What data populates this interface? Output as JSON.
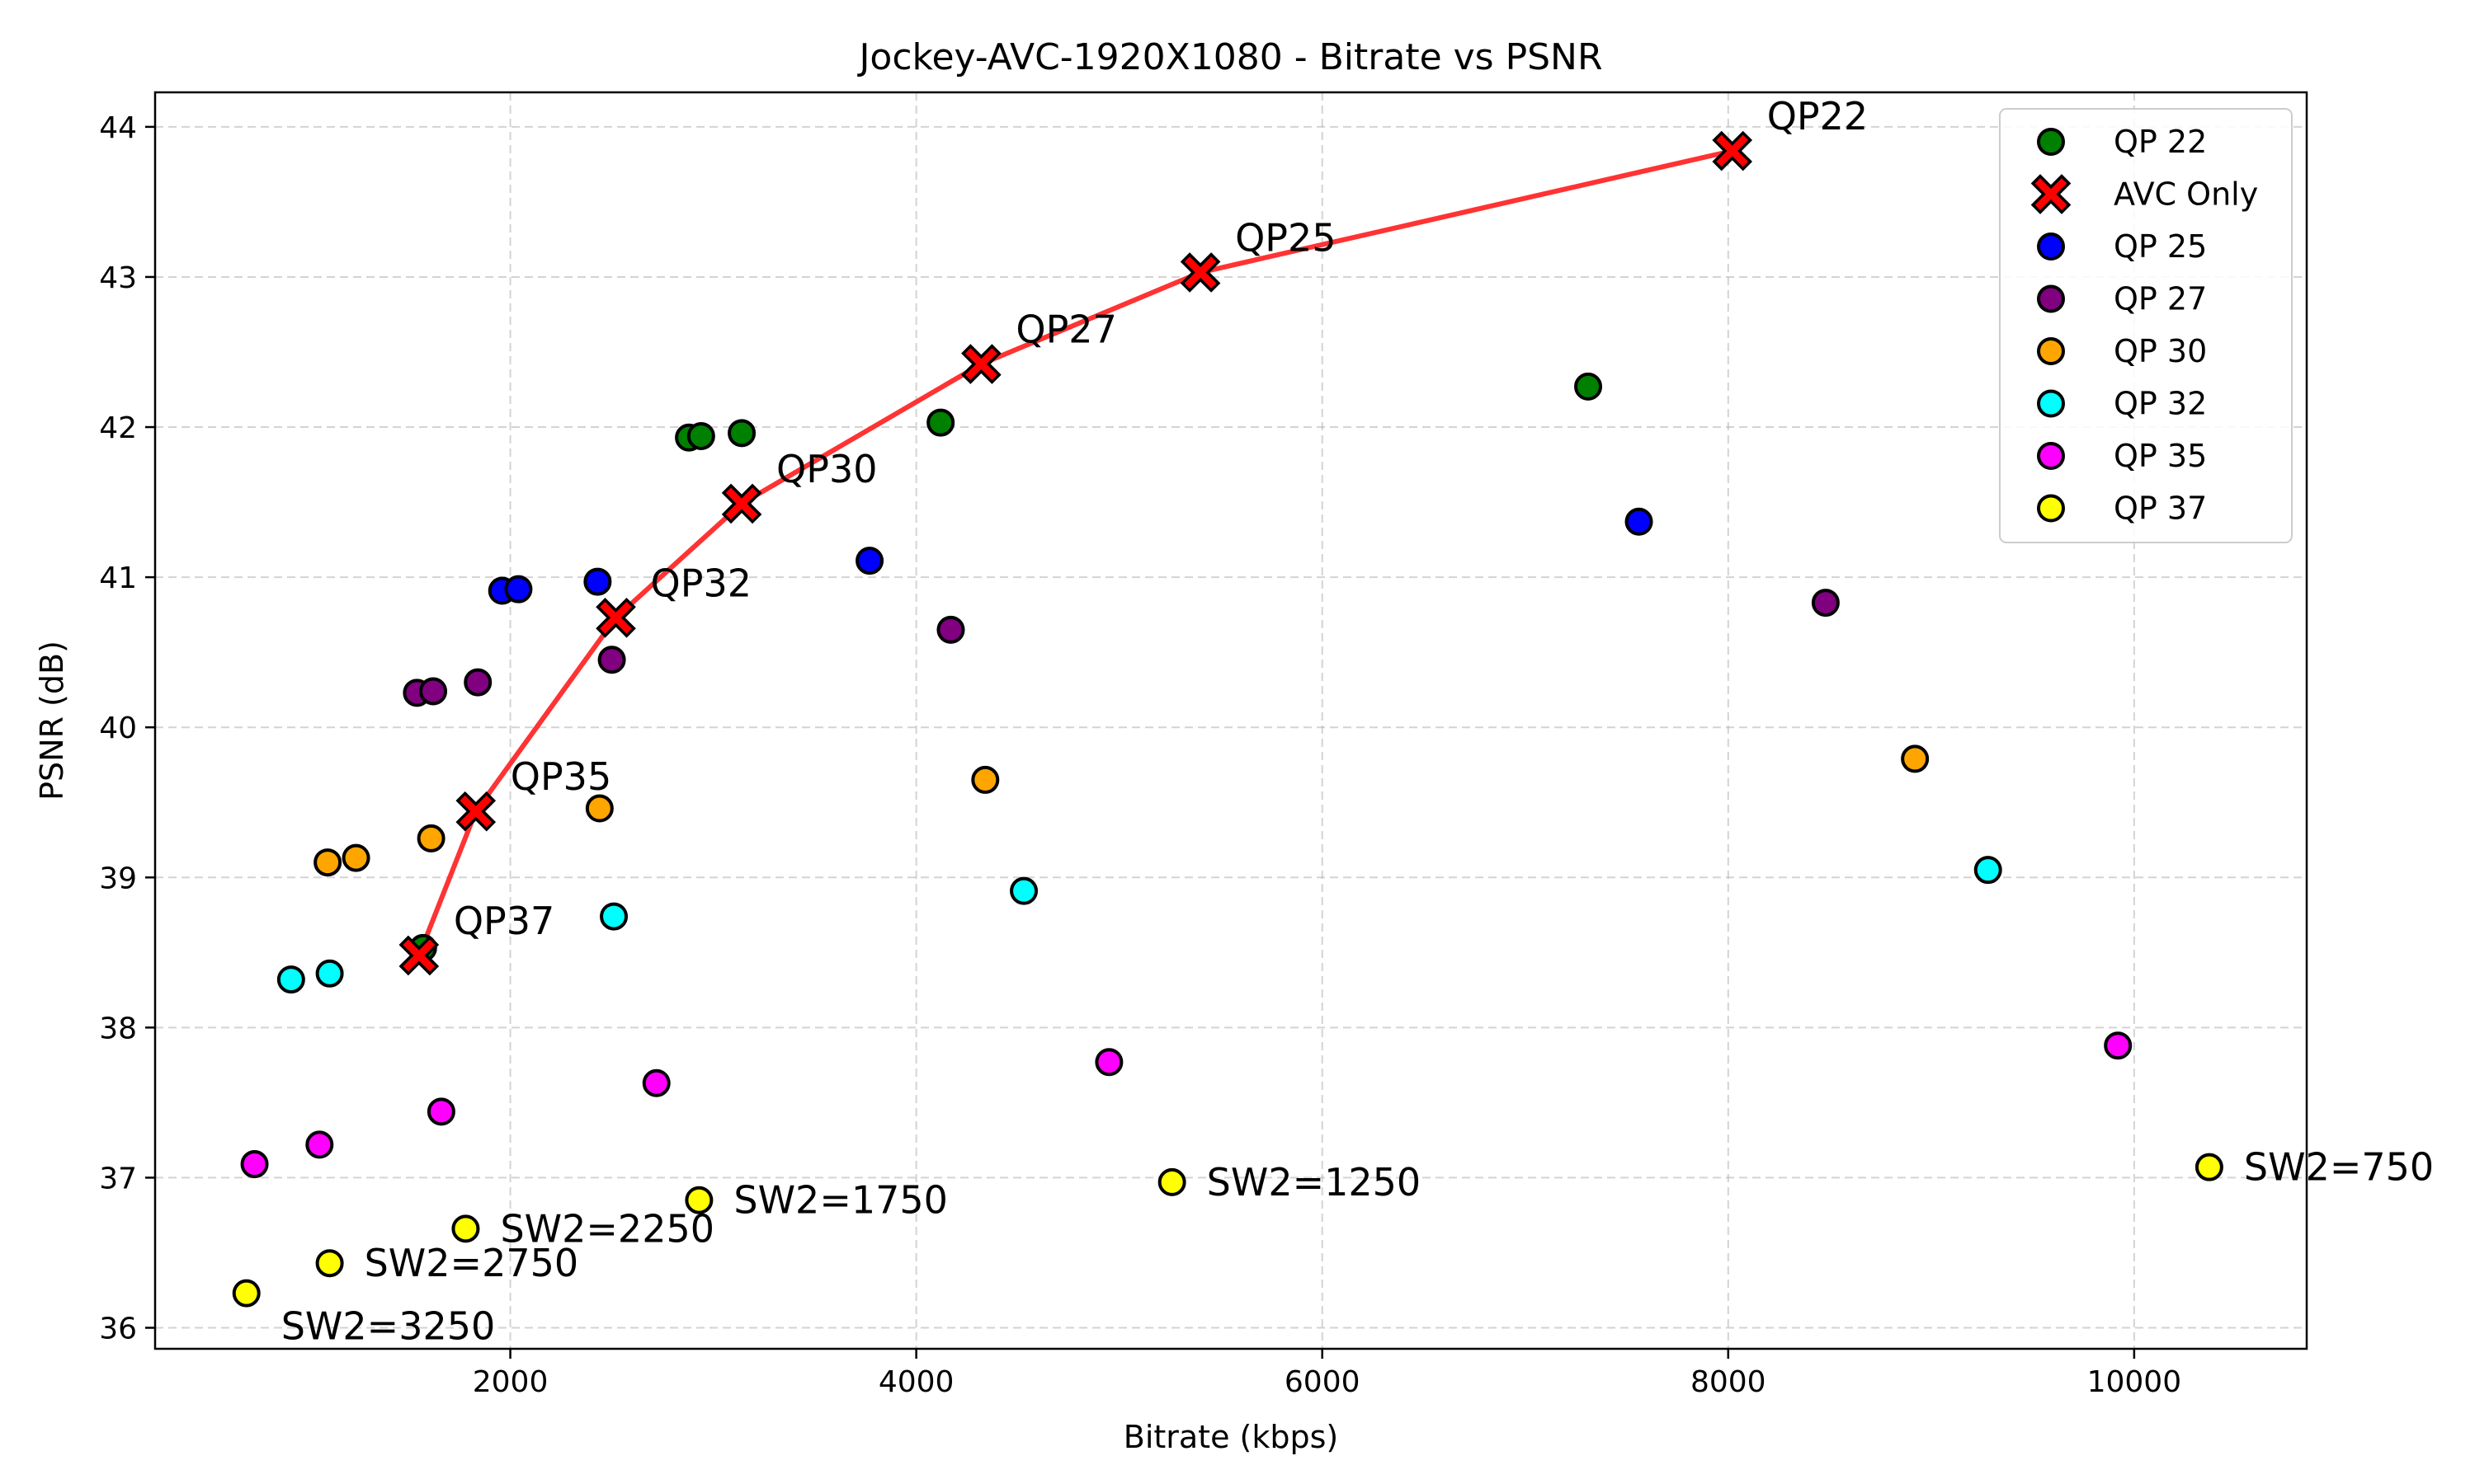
{
  "chart_data": {
    "type": "scatter",
    "title": "Jockey-AVC-1920X1080 - Bitrate vs PSNR",
    "xlabel": "Bitrate (kbps)",
    "ylabel": "PSNR (dB)",
    "xlim": [
      250,
      10850
    ],
    "ylim": [
      35.86,
      44.23
    ],
    "xticks": [
      2000,
      4000,
      6000,
      8000,
      10000
    ],
    "yticks": [
      36,
      37,
      38,
      39,
      40,
      41,
      42,
      43,
      44
    ],
    "grid": true,
    "legend_position": "top-right",
    "series": [
      {
        "name": "QP 22",
        "color": "#008000",
        "marker": "circle",
        "points": [
          [
            1570,
            38.53
          ],
          [
            2880,
            41.93
          ],
          [
            2940,
            41.94
          ],
          [
            3140,
            41.96
          ],
          [
            4120,
            42.03
          ],
          [
            7310,
            42.27
          ]
        ]
      },
      {
        "name": "AVC Only",
        "color": "#ff0000",
        "marker": "x",
        "line": true,
        "line_color": "#ff3333",
        "points": [
          [
            1550,
            38.48
          ],
          [
            1830,
            39.44
          ],
          [
            2520,
            40.73
          ],
          [
            3140,
            41.49
          ],
          [
            4320,
            42.42
          ],
          [
            5400,
            43.03
          ],
          [
            8020,
            43.84
          ]
        ]
      },
      {
        "name": "QP 25",
        "color": "#0000ff",
        "marker": "circle",
        "points": [
          [
            1960,
            40.91
          ],
          [
            2040,
            40.92
          ],
          [
            2430,
            40.97
          ],
          [
            3770,
            41.11
          ],
          [
            7560,
            41.37
          ]
        ]
      },
      {
        "name": "QP 27",
        "color": "#800080",
        "marker": "circle",
        "points": [
          [
            1540,
            40.23
          ],
          [
            1620,
            40.24
          ],
          [
            1840,
            40.3
          ],
          [
            2500,
            40.45
          ],
          [
            4170,
            40.65
          ],
          [
            8480,
            40.83
          ]
        ]
      },
      {
        "name": "QP 30",
        "color": "#ffa500",
        "marker": "circle",
        "points": [
          [
            1100,
            39.1
          ],
          [
            1240,
            39.13
          ],
          [
            1610,
            39.26
          ],
          [
            2440,
            39.46
          ],
          [
            4340,
            39.65
          ],
          [
            8920,
            39.79
          ]
        ]
      },
      {
        "name": "QP 32",
        "color": "#00ffff",
        "marker": "circle",
        "points": [
          [
            920,
            38.32
          ],
          [
            1110,
            38.36
          ],
          [
            2510,
            38.74
          ],
          [
            4530,
            38.91
          ],
          [
            9280,
            39.05
          ]
        ]
      },
      {
        "name": "QP 35",
        "color": "#ff00ff",
        "marker": "circle",
        "points": [
          [
            740,
            37.09
          ],
          [
            1060,
            37.22
          ],
          [
            1660,
            37.44
          ],
          [
            2720,
            37.63
          ],
          [
            4950,
            37.77
          ],
          [
            9920,
            37.88
          ]
        ]
      },
      {
        "name": "QP 37",
        "color": "#ffff00",
        "marker": "circle",
        "points": [
          [
            700,
            36.23
          ],
          [
            1110,
            36.43
          ],
          [
            1780,
            36.66
          ],
          [
            2930,
            36.85
          ],
          [
            5260,
            36.97
          ],
          [
            10370,
            37.07
          ]
        ]
      }
    ],
    "annotations": [
      {
        "text": "QP22",
        "x": 8020,
        "y": 43.84
      },
      {
        "text": "QP25",
        "x": 5400,
        "y": 43.03
      },
      {
        "text": "QP27",
        "x": 4320,
        "y": 42.42
      },
      {
        "text": "QP30",
        "x": 3140,
        "y": 41.49
      },
      {
        "text": "QP32",
        "x": 2520,
        "y": 40.73
      },
      {
        "text": "QP35",
        "x": 1830,
        "y": 39.44
      },
      {
        "text": "QP37",
        "x": 1550,
        "y": 38.48
      },
      {
        "text": "SW2=750",
        "x": 10370,
        "y": 37.07
      },
      {
        "text": "SW2=1250",
        "x": 5260,
        "y": 36.97
      },
      {
        "text": "SW2=1750",
        "x": 2930,
        "y": 36.85
      },
      {
        "text": "SW2=2250",
        "x": 1780,
        "y": 36.66
      },
      {
        "text": "SW2=2750",
        "x": 1110,
        "y": 36.43
      },
      {
        "text": "SW2=3250",
        "x": 700,
        "y": 36.23
      }
    ]
  }
}
